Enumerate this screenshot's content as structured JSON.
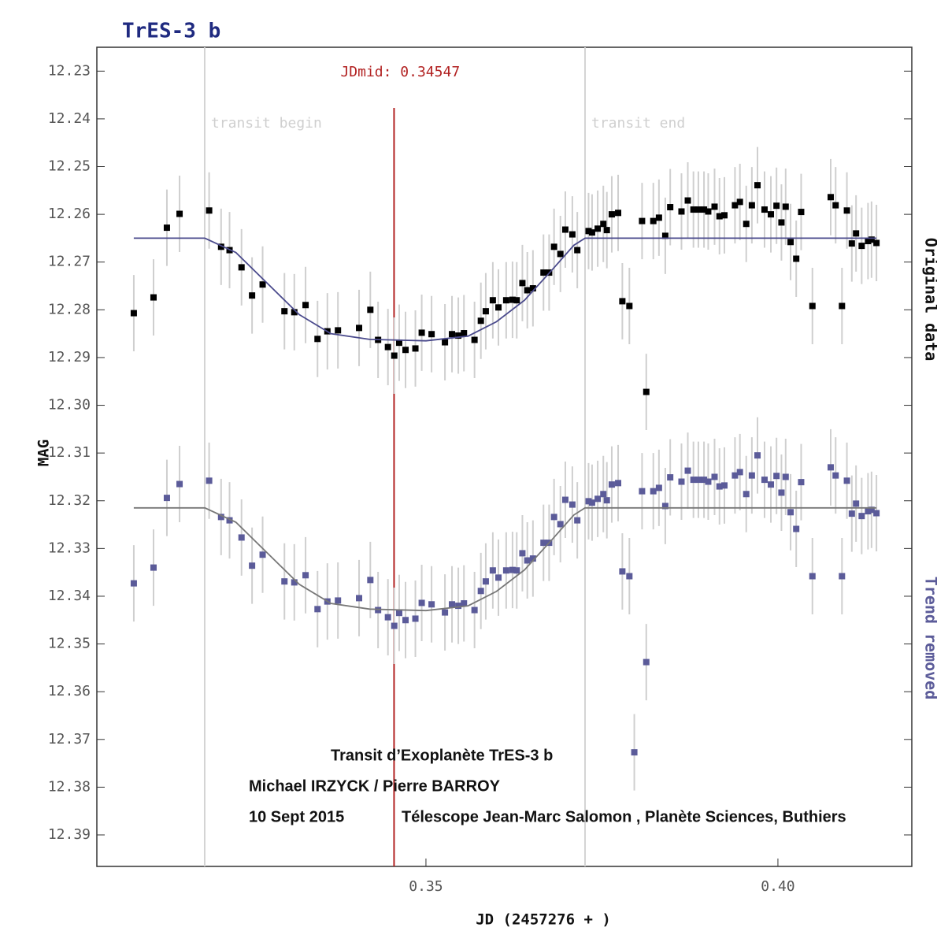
{
  "chart_data": {
    "type": "scatter",
    "title": "TrES-3 b",
    "xlabel": "JD (2457276 + )",
    "ylabel": "MAG",
    "xlim": [
      0.30325,
      0.41902
    ],
    "ylim": [
      12.225,
      12.3966
    ],
    "y_inverted": true,
    "xticks": [
      0.35,
      {
        "value": 0.4,
        "label": "0.40"
      }
    ],
    "yticks": [
      12.23,
      12.24,
      12.25,
      12.26,
      12.27,
      12.28,
      12.29,
      {
        "value": 12.3,
        "label": "12.30"
      },
      12.31,
      12.32,
      12.33,
      12.34,
      12.35,
      12.36,
      12.37,
      12.38,
      12.39
    ],
    "vlines": [
      {
        "x": 0.31857,
        "label": "transit begin",
        "color": "#d4d4d4"
      },
      {
        "x": 0.34547,
        "label": "JDmid: 0.34547",
        "color": "#b22222"
      },
      {
        "x": 0.3726,
        "label": "transit end",
        "color": "#d4d4d4"
      }
    ],
    "side_labels": [
      {
        "text": "Original data",
        "color": "#111111"
      },
      {
        "text": "Trend removed",
        "color": "#5b5b99"
      }
    ],
    "notes": [
      "Transit d’Exoplanète TrES-3 b",
      "Michael IRZYCK / Pierre BARROY",
      "10 Sept 2015",
      "Télescope Jean-Marc Salomon , Planète Sciences, Buthiers"
    ],
    "error_color": "#cfcfcf",
    "series": [
      {
        "name": "Original data",
        "color": "#000000",
        "error": 0.008,
        "x": [
          0.3085,
          0.3113,
          0.3132,
          0.315,
          0.3192,
          0.3209,
          0.3221,
          0.3238,
          0.3253,
          0.3268,
          0.3299,
          0.3313,
          0.3329,
          0.3346,
          0.336,
          0.3375,
          0.3405,
          0.3421,
          0.3432,
          0.3446,
          0.3455,
          0.3462,
          0.3471,
          0.3485,
          0.3494,
          0.3508,
          0.3527,
          0.3537,
          0.3546,
          0.3554,
          0.3569,
          0.3578,
          0.3585,
          0.3595,
          0.3603,
          0.3614,
          0.3623,
          0.3629,
          0.3637,
          0.3644,
          0.3652,
          0.3667,
          0.3675,
          0.3682,
          0.3691,
          0.3698,
          0.3708,
          0.3715,
          0.3731,
          0.3736,
          0.3744,
          0.3752,
          0.3757,
          0.3764,
          0.3773,
          0.3779,
          0.3789,
          0.3807,
          0.3813,
          0.3823,
          0.3831,
          0.384,
          0.3847,
          0.3863,
          0.3872,
          0.388,
          0.3887,
          0.3895,
          0.3901,
          0.391,
          0.3917,
          0.3924,
          0.3939,
          0.3946,
          0.3955,
          0.3963,
          0.3971,
          0.3981,
          0.399,
          0.3998,
          0.4005,
          0.4011,
          0.4018,
          0.4026,
          0.4033,
          0.4049,
          0.4075,
          0.4082,
          0.4091,
          0.4098,
          0.4105,
          0.4111,
          0.4119,
          0.4128,
          0.4133,
          0.414
        ],
        "values": [
          12.2807,
          12.2774,
          12.2628,
          12.2599,
          12.2592,
          12.2668,
          12.2675,
          12.2711,
          12.277,
          12.2747,
          12.2803,
          12.2805,
          12.279,
          12.2861,
          12.2845,
          12.2843,
          12.2838,
          12.28,
          12.2863,
          12.2878,
          12.2896,
          12.2869,
          12.2884,
          12.2881,
          12.2848,
          12.2851,
          12.2868,
          12.2851,
          12.2854,
          12.2849,
          12.2863,
          12.2823,
          12.2803,
          12.278,
          12.2795,
          12.278,
          12.2779,
          12.278,
          12.2744,
          12.2759,
          12.2755,
          12.2722,
          12.2722,
          12.2668,
          12.2683,
          12.2632,
          12.2642,
          12.2675,
          12.2635,
          12.2638,
          12.263,
          12.262,
          12.2633,
          12.26,
          12.2597,
          12.2782,
          12.2792,
          12.2614,
          12.2972,
          12.2614,
          12.2607,
          12.2645,
          12.2585,
          12.2594,
          12.2571,
          12.259,
          12.259,
          12.259,
          12.2594,
          12.2584,
          12.2604,
          12.2602,
          12.2581,
          12.2574,
          12.262,
          12.2581,
          12.2539,
          12.259,
          12.26,
          12.2582,
          12.2617,
          12.2584,
          12.2658,
          12.2693,
          12.2595,
          12.2792,
          12.2564,
          12.2581,
          12.2792,
          12.2592,
          12.2661,
          12.264,
          12.2666,
          12.2656,
          12.2653,
          12.266
        ]
      },
      {
        "name": "Trend removed",
        "color": "#5b5b99",
        "error": 0.008,
        "x": [
          0.3085,
          0.3113,
          0.3132,
          0.315,
          0.3192,
          0.3209,
          0.3221,
          0.3238,
          0.3253,
          0.3268,
          0.3299,
          0.3313,
          0.3329,
          0.3346,
          0.336,
          0.3375,
          0.3405,
          0.3421,
          0.3432,
          0.3446,
          0.3455,
          0.3462,
          0.3471,
          0.3485,
          0.3494,
          0.3508,
          0.3527,
          0.3537,
          0.3546,
          0.3554,
          0.3569,
          0.3578,
          0.3585,
          0.3595,
          0.3603,
          0.3614,
          0.3623,
          0.3629,
          0.3637,
          0.3644,
          0.3652,
          0.3667,
          0.3675,
          0.3682,
          0.3691,
          0.3698,
          0.3708,
          0.3715,
          0.3731,
          0.3736,
          0.3744,
          0.3752,
          0.3757,
          0.3764,
          0.3773,
          0.3779,
          0.3789,
          0.3796,
          0.3807,
          0.3813,
          0.3823,
          0.3831,
          0.384,
          0.3847,
          0.3863,
          0.3872,
          0.388,
          0.3887,
          0.3895,
          0.3901,
          0.391,
          0.3917,
          0.3924,
          0.3939,
          0.3946,
          0.3955,
          0.3963,
          0.3971,
          0.3981,
          0.399,
          0.3998,
          0.4005,
          0.4011,
          0.4018,
          0.4026,
          0.4033,
          0.4049,
          0.4075,
          0.4082,
          0.4091,
          0.4098,
          0.4105,
          0.4111,
          0.4119,
          0.4128,
          0.4133,
          0.414
        ],
        "values": [
          12.3373,
          12.334,
          12.3194,
          12.3165,
          12.3158,
          12.3234,
          12.3241,
          12.3277,
          12.3336,
          12.3313,
          12.3369,
          12.3371,
          12.3356,
          12.3427,
          12.3411,
          12.3409,
          12.3404,
          12.3366,
          12.3429,
          12.3444,
          12.3462,
          12.3435,
          12.345,
          12.3447,
          12.3414,
          12.3417,
          12.3434,
          12.3417,
          12.342,
          12.3415,
          12.3429,
          12.3389,
          12.3369,
          12.3346,
          12.3361,
          12.3346,
          12.3345,
          12.3346,
          12.331,
          12.3325,
          12.3321,
          12.3288,
          12.3288,
          12.3234,
          12.3249,
          12.3198,
          12.3208,
          12.3241,
          12.3201,
          12.3204,
          12.3196,
          12.3186,
          12.3199,
          12.3166,
          12.3163,
          12.3348,
          12.3358,
          12.3727,
          12.318,
          12.3538,
          12.318,
          12.3173,
          12.3211,
          12.3151,
          12.316,
          12.3137,
          12.3156,
          12.3156,
          12.3156,
          12.316,
          12.315,
          12.317,
          12.3168,
          12.3147,
          12.314,
          12.3186,
          12.3147,
          12.3105,
          12.3156,
          12.3166,
          12.3148,
          12.3183,
          12.315,
          12.3224,
          12.3259,
          12.3161,
          12.3358,
          12.313,
          12.3147,
          12.3358,
          12.3158,
          12.3227,
          12.3206,
          12.3232,
          12.3222,
          12.3219,
          12.3226
        ]
      }
    ],
    "fits": [
      {
        "color": "#4a4a8c",
        "x": [
          0.3085,
          0.3186,
          0.323,
          0.3275,
          0.332,
          0.3365,
          0.342,
          0.35,
          0.356,
          0.36,
          0.364,
          0.368,
          0.371,
          0.3726,
          0.414
        ],
        "values": [
          12.265,
          12.265,
          12.268,
          12.2745,
          12.281,
          12.285,
          12.2862,
          12.2865,
          12.2855,
          12.2825,
          12.278,
          12.2715,
          12.2665,
          12.265,
          12.265
        ]
      },
      {
        "color": "#777777",
        "x": [
          0.3085,
          0.3186,
          0.323,
          0.3275,
          0.332,
          0.3365,
          0.342,
          0.35,
          0.356,
          0.36,
          0.364,
          0.368,
          0.371,
          0.3726,
          0.414
        ],
        "values": [
          12.3215,
          12.3215,
          12.3245,
          12.331,
          12.3375,
          12.3415,
          12.3427,
          12.343,
          12.342,
          12.339,
          12.3345,
          12.328,
          12.323,
          12.3215,
          12.3215
        ]
      }
    ]
  }
}
